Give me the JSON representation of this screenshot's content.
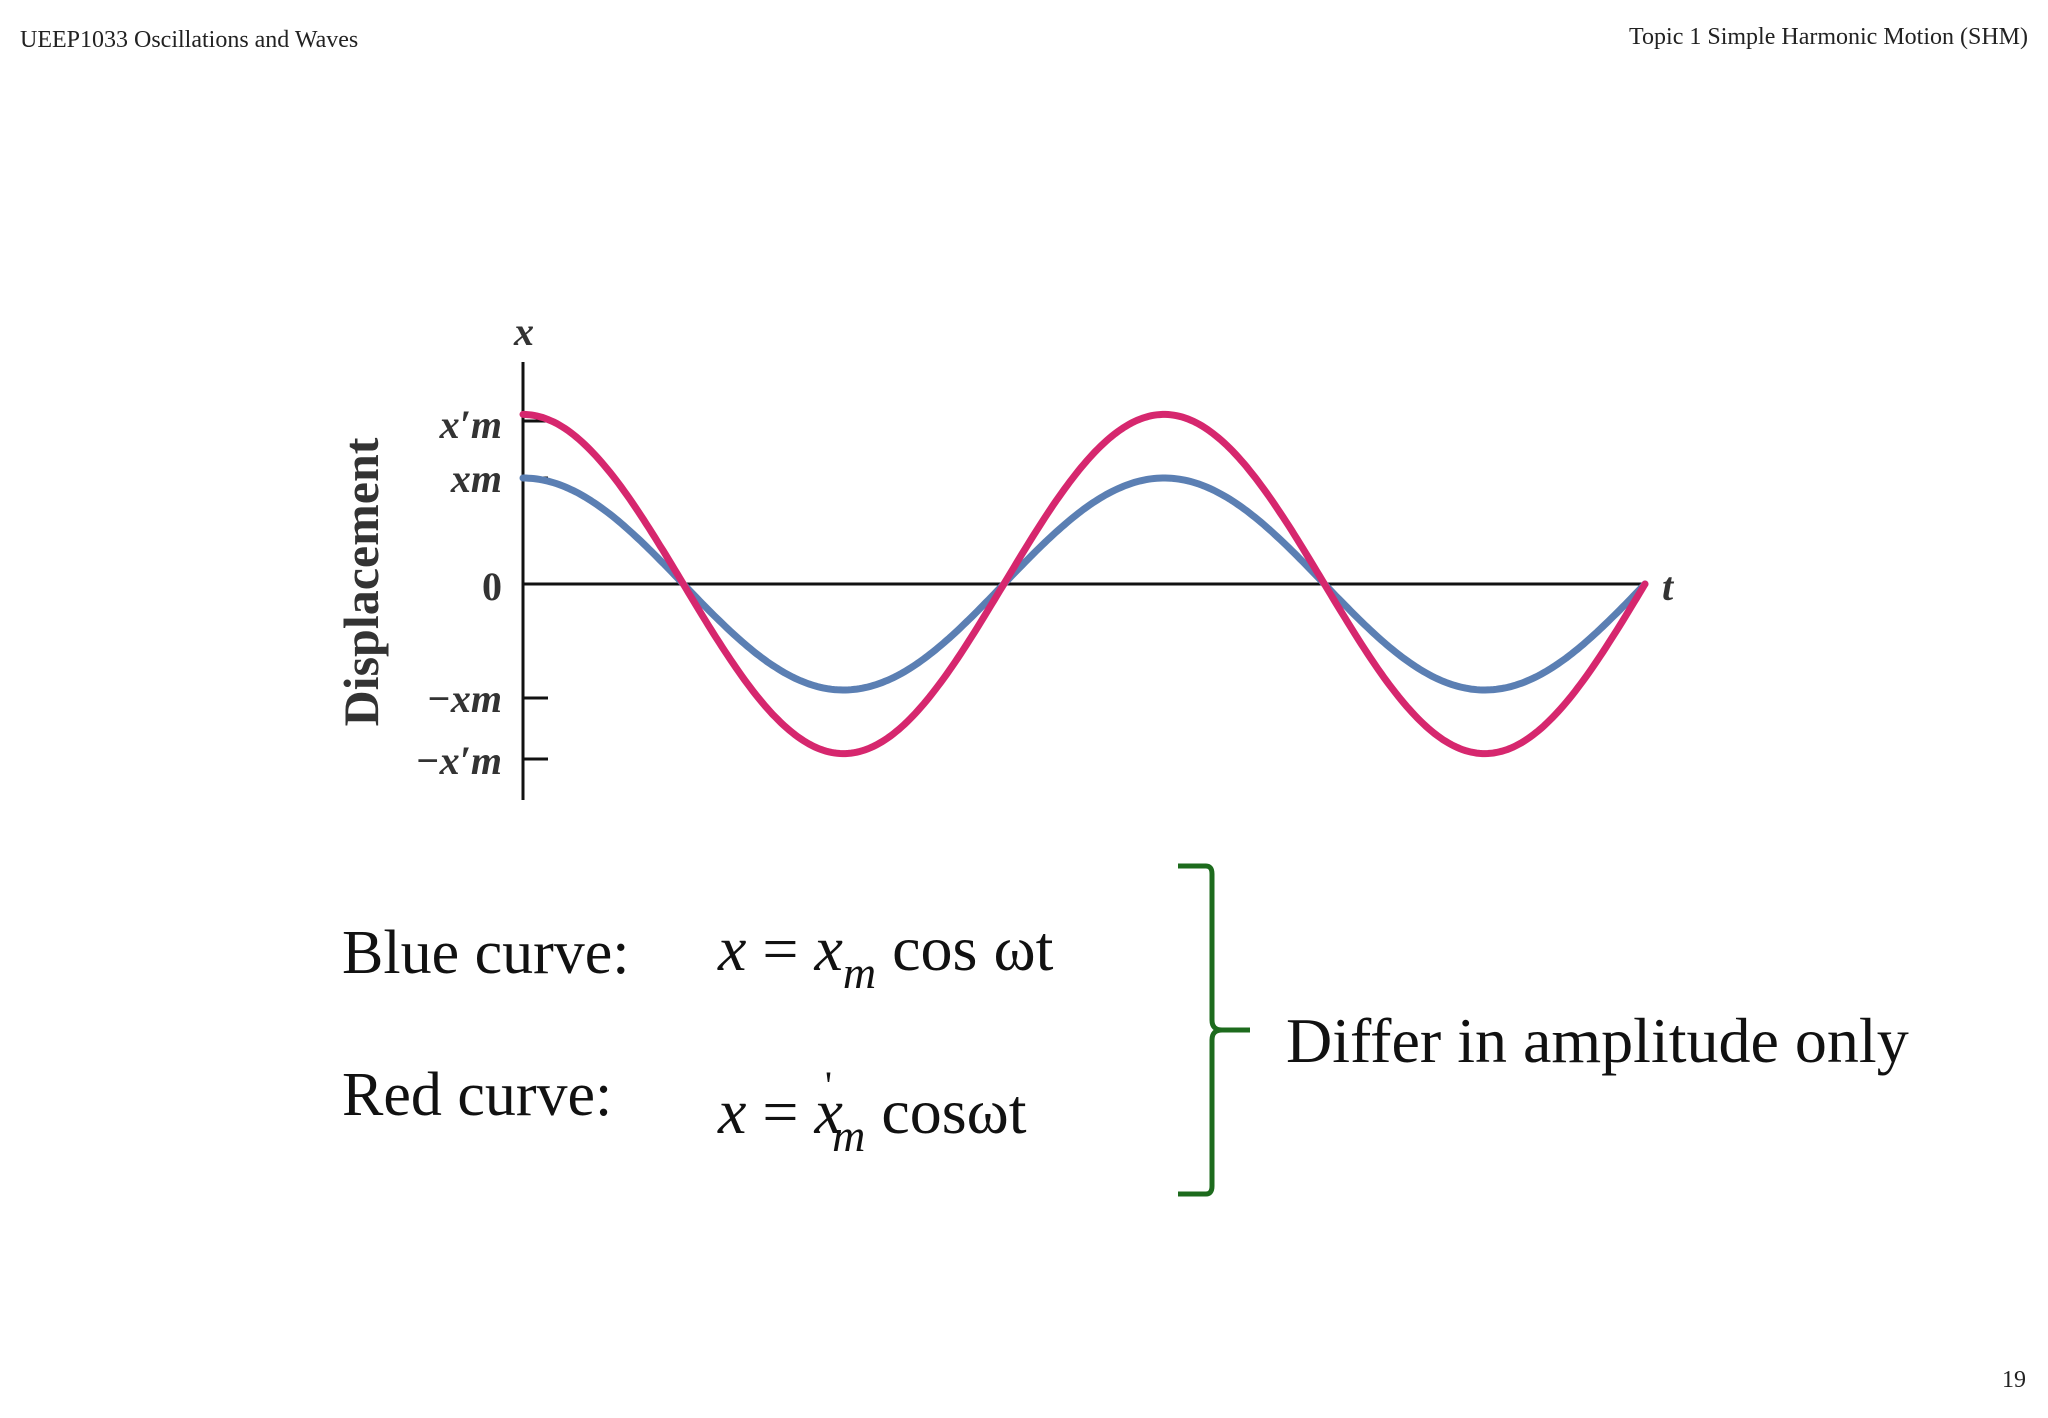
{
  "header": {
    "course": "UEEP1033 Oscillations and Waves",
    "topic": "Topic 1 Simple Harmonic Motion (SHM)"
  },
  "page_number": "19",
  "figure": {
    "y_axis_symbol": "x",
    "x_axis_symbol": "t",
    "y_axis_label": "Displacement",
    "tick_labels": {
      "x_prime_m": "x′m",
      "x_m": "xm",
      "zero": "0",
      "neg_x_m": "−xm",
      "neg_x_prime_m": "−x′m"
    },
    "colors": {
      "blue_curve": "#5b7fb3",
      "red_curve": "#d6276e",
      "axis": "#111111",
      "brace": "#1d6b1d"
    }
  },
  "chart_data": {
    "type": "line",
    "xlabel": "t",
    "ylabel": "Displacement",
    "x_range_cycles": [
      0,
      1.75
    ],
    "series": [
      {
        "name": "Blue curve",
        "amplitude": 1.0,
        "function": "x = xm cos ωt"
      },
      {
        "name": "Red curve",
        "amplitude": 1.6,
        "function": "x = x′m cos ωt"
      }
    ]
  },
  "equations": {
    "blue_label": "Blue curve:",
    "red_label": "Red curve:",
    "blue_lhs": "x",
    "blue_eq": "=",
    "blue_var": "x",
    "blue_sub": "m",
    "blue_rhs": "cos ωt",
    "red_lhs": "x",
    "red_eq": "=",
    "red_var": "x",
    "red_prime": "'",
    "red_sub": "m",
    "red_rhs": "cosωt"
  },
  "annotation": "Differ in amplitude only"
}
